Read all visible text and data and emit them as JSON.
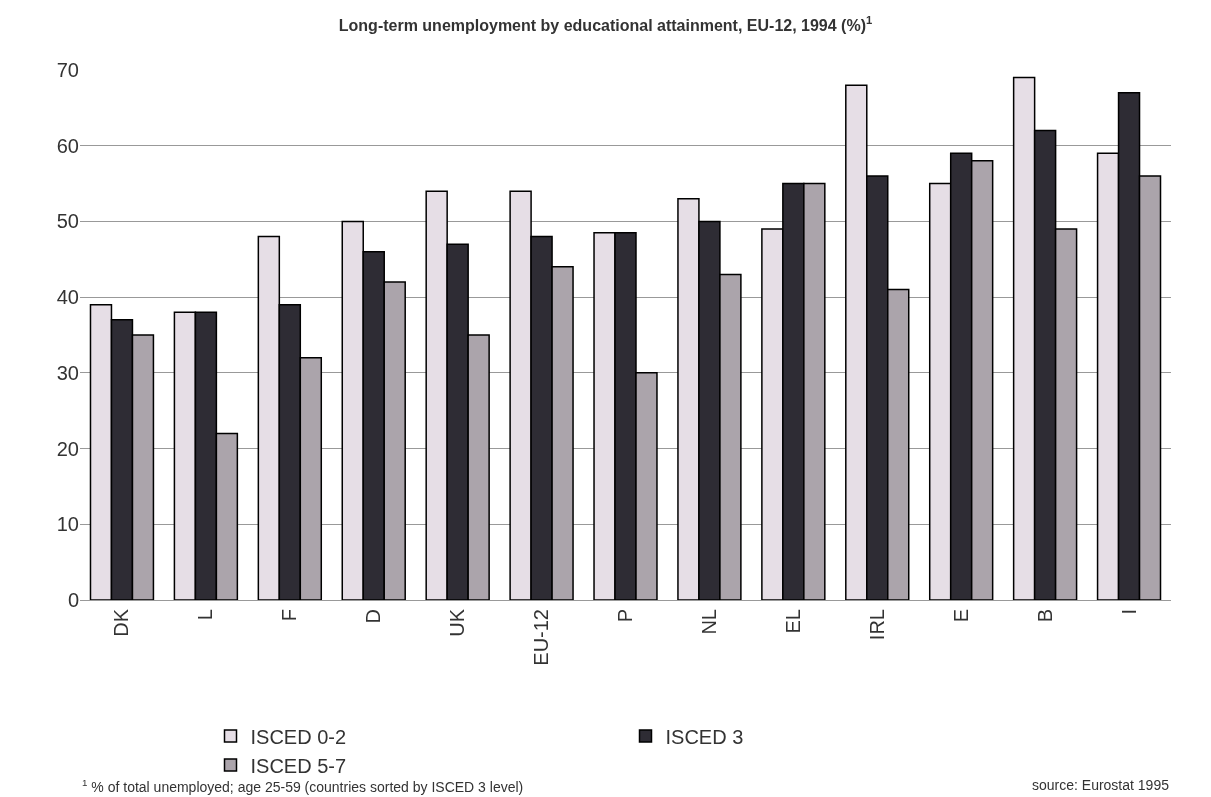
{
  "chart_data": {
    "type": "bar",
    "title": "Long-term unemployment by educational attainment, EU-12, 1994 (%)$^{1}$",
    "categories": [
      "DK",
      "L",
      "F",
      "D",
      "UK",
      "EU-12",
      "P",
      "NL",
      "EL",
      "IRL",
      "E",
      "B",
      "I"
    ],
    "series": [
      {
        "name": "ISCED 0-2",
        "color": "#e6dee6",
        "values": [
          39,
          38,
          48,
          50,
          54,
          54,
          48.5,
          53,
          49,
          68,
          55,
          69,
          59
        ]
      },
      {
        "name": "ISCED 3",
        "color": "#2e2c34",
        "values": [
          37,
          38,
          39,
          46,
          47,
          48,
          48.5,
          50,
          55,
          56,
          59,
          62,
          67
        ]
      },
      {
        "name": "ISCED 5-7",
        "color": "#aba4ab",
        "values": [
          35,
          22,
          32,
          42,
          35,
          44,
          30,
          43,
          55,
          41,
          58,
          49,
          56
        ]
      }
    ],
    "ylim": [
      0,
      70
    ],
    "yticks": [
      0,
      10,
      20,
      30,
      40,
      50,
      60,
      70
    ],
    "grid": "y",
    "legend": "bottom",
    "annotations": [
      "$^{1}$ % of total unemployed; age 25-59 (countries sorted by ISCED 3 level)",
      "source: Eurostat 1995"
    ]
  }
}
